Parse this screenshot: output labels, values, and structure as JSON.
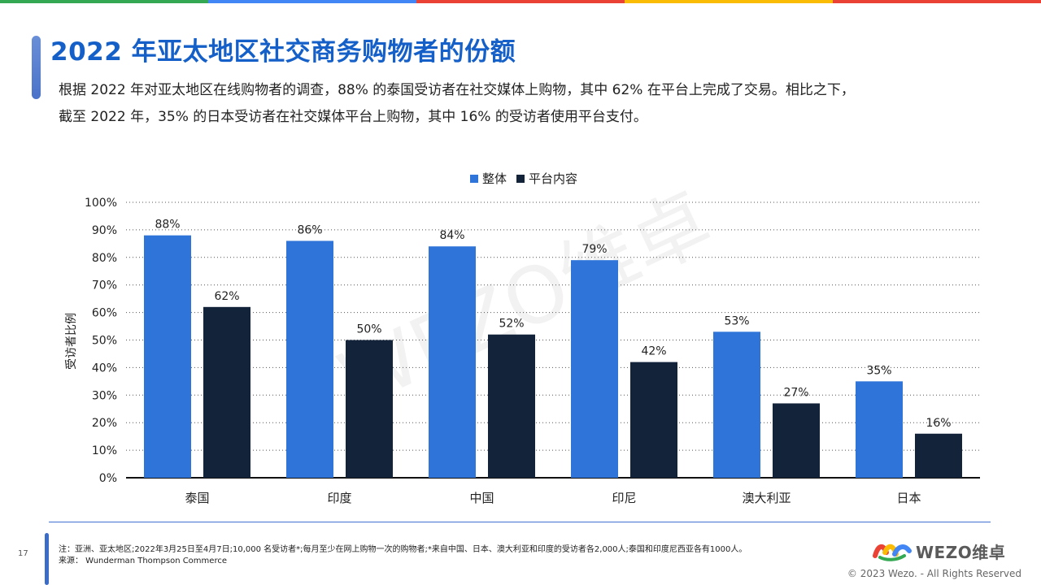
{
  "page": {
    "title": "2022 年亚太地区社交商务购物者的份额",
    "description_line1": "根据 2022 年对亚太地区在线购物者的调查，88% 的泰国受访者在社交媒体上购物，其中 62% 在平台上完成了交易。相比之下，",
    "description_line2": "截至 2022 年，35% 的日本受访者在社交媒体平台上购物，其中 16% 的受访者使用平台支付。",
    "watermark": "WEZO维卓",
    "page_number": "17",
    "note_line1": "注：亚洲、亚太地区;2022年3月25日至4月7日;10,000 名受访者*;每月至少在网上购物一次的购物者;*来自中国、日本、澳大利亚和印度的受访者各2,000人;泰国和印度尼西亚各有1000人。",
    "note_line2": "来源：  Wunderman Thompson Commerce",
    "logo_text": "WEZO维卓",
    "copyright": "© 2023 Wezo. - All Rights Reserved",
    "topbar_colors": [
      "#34a853",
      "#4285f4",
      "#ea4335",
      "#fbbc05",
      "#ea4335"
    ]
  },
  "chart_data": {
    "type": "bar",
    "categories": [
      "泰国",
      "印度",
      "中国",
      "印尼",
      "澳大利亚",
      "日本"
    ],
    "series": [
      {
        "name": "整体",
        "values": [
          88,
          86,
          84,
          79,
          53,
          35
        ],
        "color": "#2f74d9"
      },
      {
        "name": "平台内容",
        "values": [
          62,
          50,
          52,
          42,
          27,
          16
        ],
        "color": "#13233a"
      }
    ],
    "ylabel": "受访者比例",
    "ylim": [
      0,
      100
    ],
    "yticks": [
      "0%",
      "10%",
      "20%",
      "30%",
      "40%",
      "50%",
      "60%",
      "70%",
      "80%",
      "90%",
      "100%"
    ],
    "value_suffix": "%",
    "grid": "horizontal dotted",
    "legend_position": "top-center"
  }
}
